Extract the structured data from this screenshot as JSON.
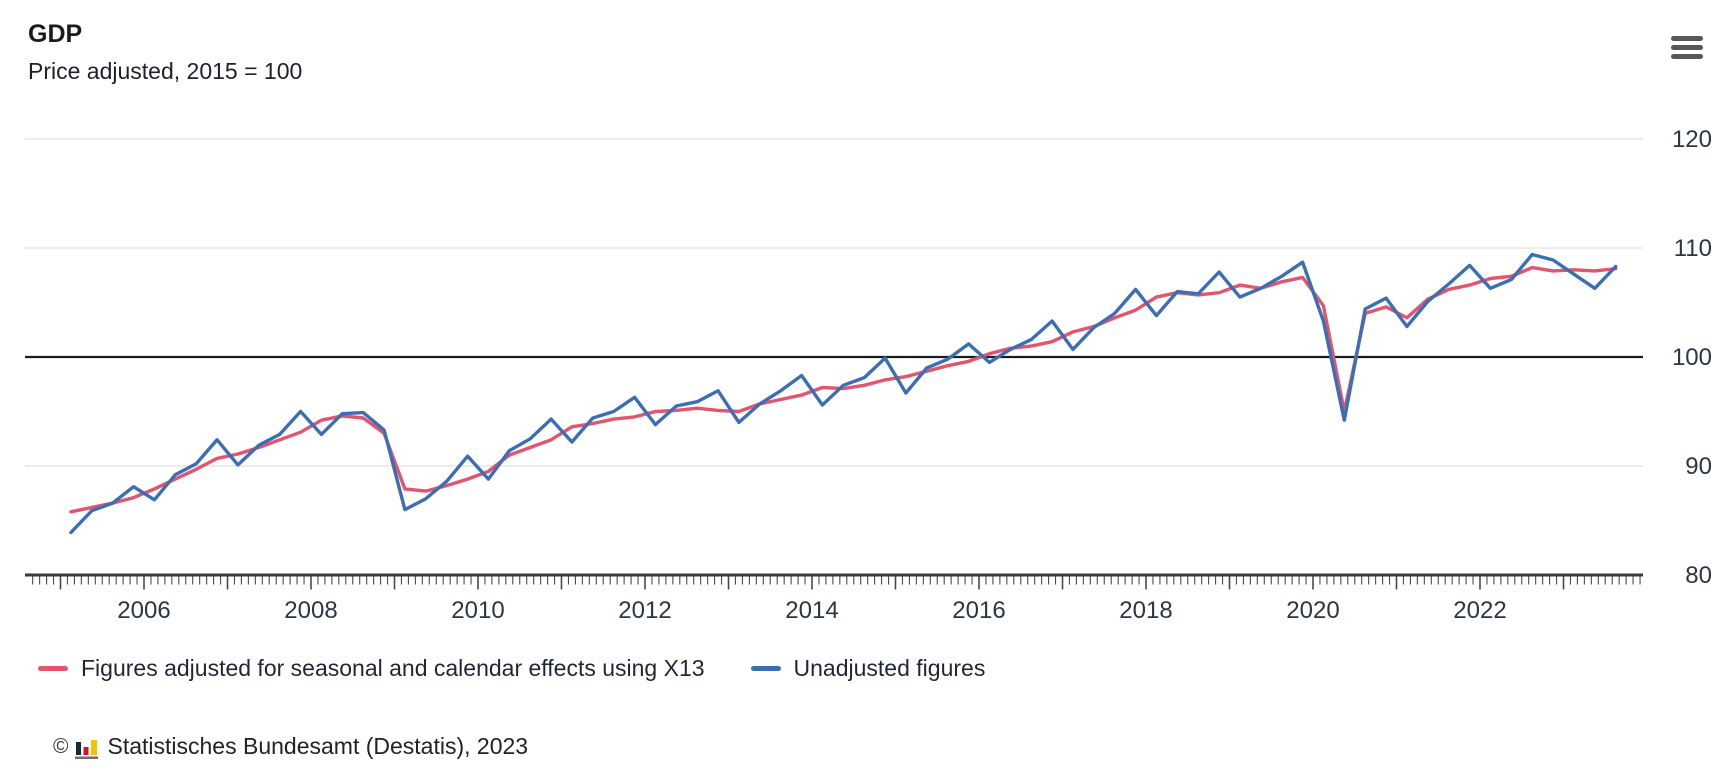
{
  "header": {
    "title": "GDP",
    "subtitle": "Price adjusted, 2015 = 100"
  },
  "menu": {
    "icon": "hamburger-menu",
    "bars": 3
  },
  "chart_data": {
    "type": "line",
    "title": "GDP",
    "subtitle": "Price adjusted, 2015 = 100",
    "grid": "horizontal",
    "legend_position": "bottom",
    "y_axis": {
      "side": "right",
      "min": 80,
      "max": 120,
      "ticks": [
        80,
        90,
        100,
        110,
        120
      ],
      "reference_line": 100
    },
    "x_axis": {
      "tick_years": [
        2006,
        2008,
        2010,
        2012,
        2014,
        2016,
        2018,
        2020,
        2022
      ],
      "minor_tick_interval": "month",
      "range": [
        "2004-08",
        "2023-12"
      ]
    },
    "quarters": [
      "2005-Q1",
      "2005-Q2",
      "2005-Q3",
      "2005-Q4",
      "2006-Q1",
      "2006-Q2",
      "2006-Q3",
      "2006-Q4",
      "2007-Q1",
      "2007-Q2",
      "2007-Q3",
      "2007-Q4",
      "2008-Q1",
      "2008-Q2",
      "2008-Q3",
      "2008-Q4",
      "2009-Q1",
      "2009-Q2",
      "2009-Q3",
      "2009-Q4",
      "2010-Q1",
      "2010-Q2",
      "2010-Q3",
      "2010-Q4",
      "2011-Q1",
      "2011-Q2",
      "2011-Q3",
      "2011-Q4",
      "2012-Q1",
      "2012-Q2",
      "2012-Q3",
      "2012-Q4",
      "2013-Q1",
      "2013-Q2",
      "2013-Q3",
      "2013-Q4",
      "2014-Q1",
      "2014-Q2",
      "2014-Q3",
      "2014-Q4",
      "2015-Q1",
      "2015-Q2",
      "2015-Q3",
      "2015-Q4",
      "2016-Q1",
      "2016-Q2",
      "2016-Q3",
      "2016-Q4",
      "2017-Q1",
      "2017-Q2",
      "2017-Q3",
      "2017-Q4",
      "2018-Q1",
      "2018-Q2",
      "2018-Q3",
      "2018-Q4",
      "2019-Q1",
      "2019-Q2",
      "2019-Q3",
      "2019-Q4",
      "2020-Q1",
      "2020-Q2",
      "2020-Q3",
      "2020-Q4",
      "2021-Q1",
      "2021-Q2",
      "2021-Q3",
      "2021-Q4",
      "2022-Q1",
      "2022-Q2",
      "2022-Q3",
      "2022-Q4",
      "2023-Q1",
      "2023-Q2",
      "2023-Q3"
    ],
    "series": [
      {
        "name": "Figures adjusted for seasonal and calendar effects using X13",
        "color": "#e4546e",
        "values": [
          85.8,
          86.2,
          86.6,
          87.1,
          87.9,
          88.8,
          89.7,
          90.7,
          91.1,
          91.7,
          92.4,
          93.1,
          94.2,
          94.6,
          94.4,
          93.0,
          87.9,
          87.7,
          88.2,
          88.8,
          89.5,
          91.0,
          91.7,
          92.4,
          93.6,
          93.9,
          94.3,
          94.5,
          95.0,
          95.1,
          95.3,
          95.1,
          95.0,
          95.7,
          96.1,
          96.5,
          97.2,
          97.1,
          97.4,
          97.9,
          98.2,
          98.7,
          99.2,
          99.6,
          100.3,
          100.8,
          101.0,
          101.4,
          102.3,
          102.8,
          103.6,
          104.3,
          105.5,
          105.9,
          105.7,
          105.9,
          106.6,
          106.3,
          106.9,
          107.3,
          104.7,
          95.0,
          104.0,
          104.6,
          103.6,
          105.3,
          106.2,
          106.6,
          107.2,
          107.4,
          108.2,
          107.9,
          108.0,
          107.9,
          108.1
        ]
      },
      {
        "name": "Unadjusted figures",
        "color": "#3a6eb5",
        "values": [
          83.9,
          85.9,
          86.6,
          88.1,
          86.9,
          89.2,
          90.2,
          92.4,
          90.1,
          91.9,
          92.9,
          95.0,
          92.9,
          94.8,
          94.9,
          93.3,
          86.0,
          87.0,
          88.6,
          90.9,
          88.8,
          91.4,
          92.5,
          94.3,
          92.2,
          94.4,
          95.0,
          96.3,
          93.8,
          95.5,
          95.9,
          96.9,
          94.0,
          95.7,
          96.9,
          98.3,
          95.6,
          97.4,
          98.1,
          99.9,
          96.7,
          99.0,
          99.8,
          101.2,
          99.5,
          100.7,
          101.6,
          103.3,
          100.7,
          102.7,
          104.0,
          106.2,
          103.8,
          106.0,
          105.8,
          107.8,
          105.5,
          106.3,
          107.4,
          108.7,
          103.3,
          94.2,
          104.4,
          105.4,
          102.8,
          105.1,
          106.7,
          108.4,
          106.3,
          107.1,
          109.4,
          108.9,
          107.6,
          106.3,
          108.3
        ]
      }
    ]
  },
  "footer": {
    "copyright": "©",
    "source": "Statistisches Bundesamt (Destatis), 2023",
    "logo_colors": {
      "bar1": "#16283c",
      "bar2": "#d51130",
      "bar3": "#f6c200",
      "baseline": "#6e6e6e"
    }
  }
}
